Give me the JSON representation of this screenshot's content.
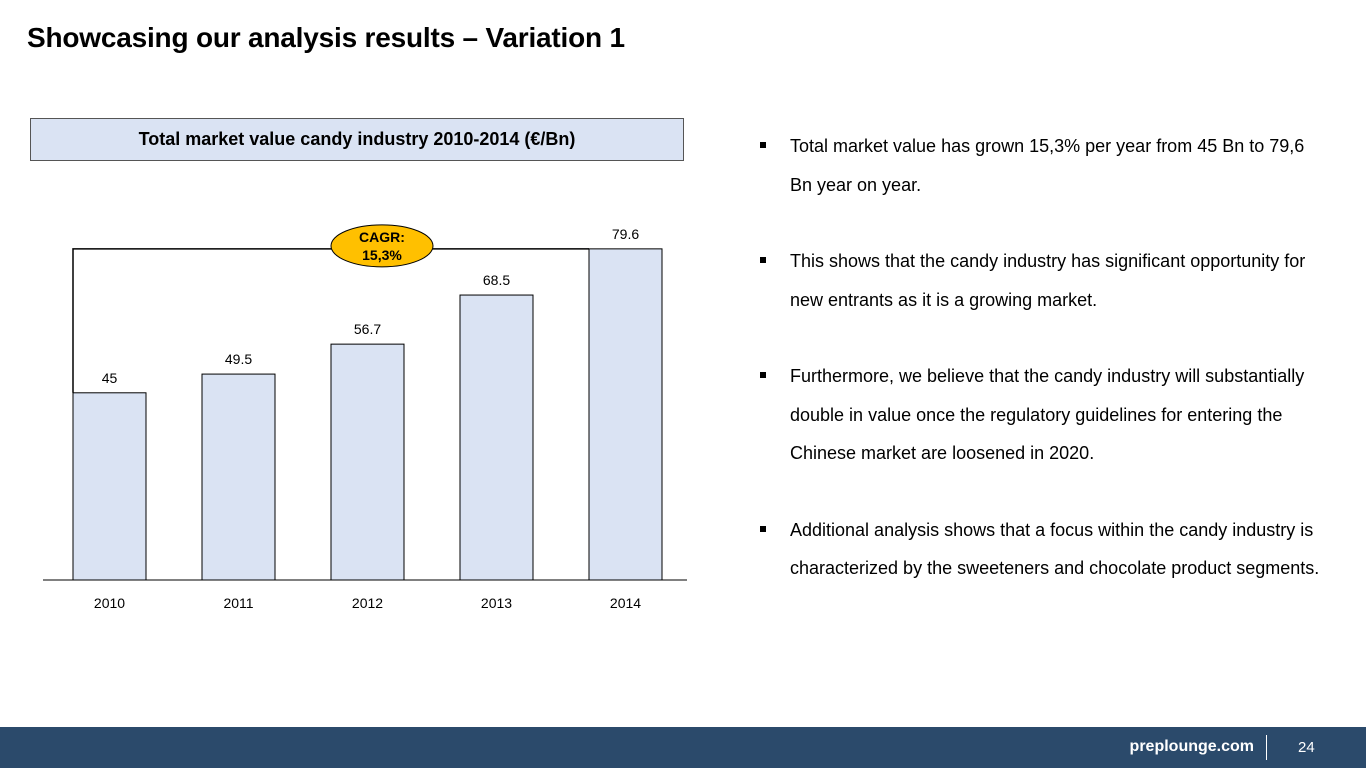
{
  "slide": {
    "title": "Showcasing our analysis results – Variation 1"
  },
  "chart_data": {
    "type": "bar",
    "title": "Total market value candy industry 2010-2014 (€/Bn)",
    "categories": [
      "2010",
      "2011",
      "2012",
      "2013",
      "2014"
    ],
    "values": [
      45,
      49.5,
      56.7,
      68.5,
      79.6
    ],
    "value_labels": [
      "45",
      "49.5",
      "56.7",
      "68.5",
      "79.6"
    ],
    "bar_color": "#dae3f3",
    "grid": false,
    "annotation": {
      "type": "cagr-bracket",
      "from": "2010",
      "to": "2014",
      "label_line1": "CAGR:",
      "label_line2": "15,3%",
      "color": "#ffc000"
    }
  },
  "bullets": [
    "Total market value has grown 15,3% per year from 45 Bn to 79,6 Bn year on year.",
    "This shows that the candy industry has significant opportunity for new entrants as it is a growing market.",
    "Furthermore, we believe that the candy industry will substantially double in value once the regulatory guidelines for entering the Chinese market are loosened in 2020.",
    "Additional analysis shows that a focus within the candy industry is characterized by the sweeteners and chocolate product segments."
  ],
  "footer": {
    "brand": "preplounge.com",
    "page_number": "24"
  }
}
